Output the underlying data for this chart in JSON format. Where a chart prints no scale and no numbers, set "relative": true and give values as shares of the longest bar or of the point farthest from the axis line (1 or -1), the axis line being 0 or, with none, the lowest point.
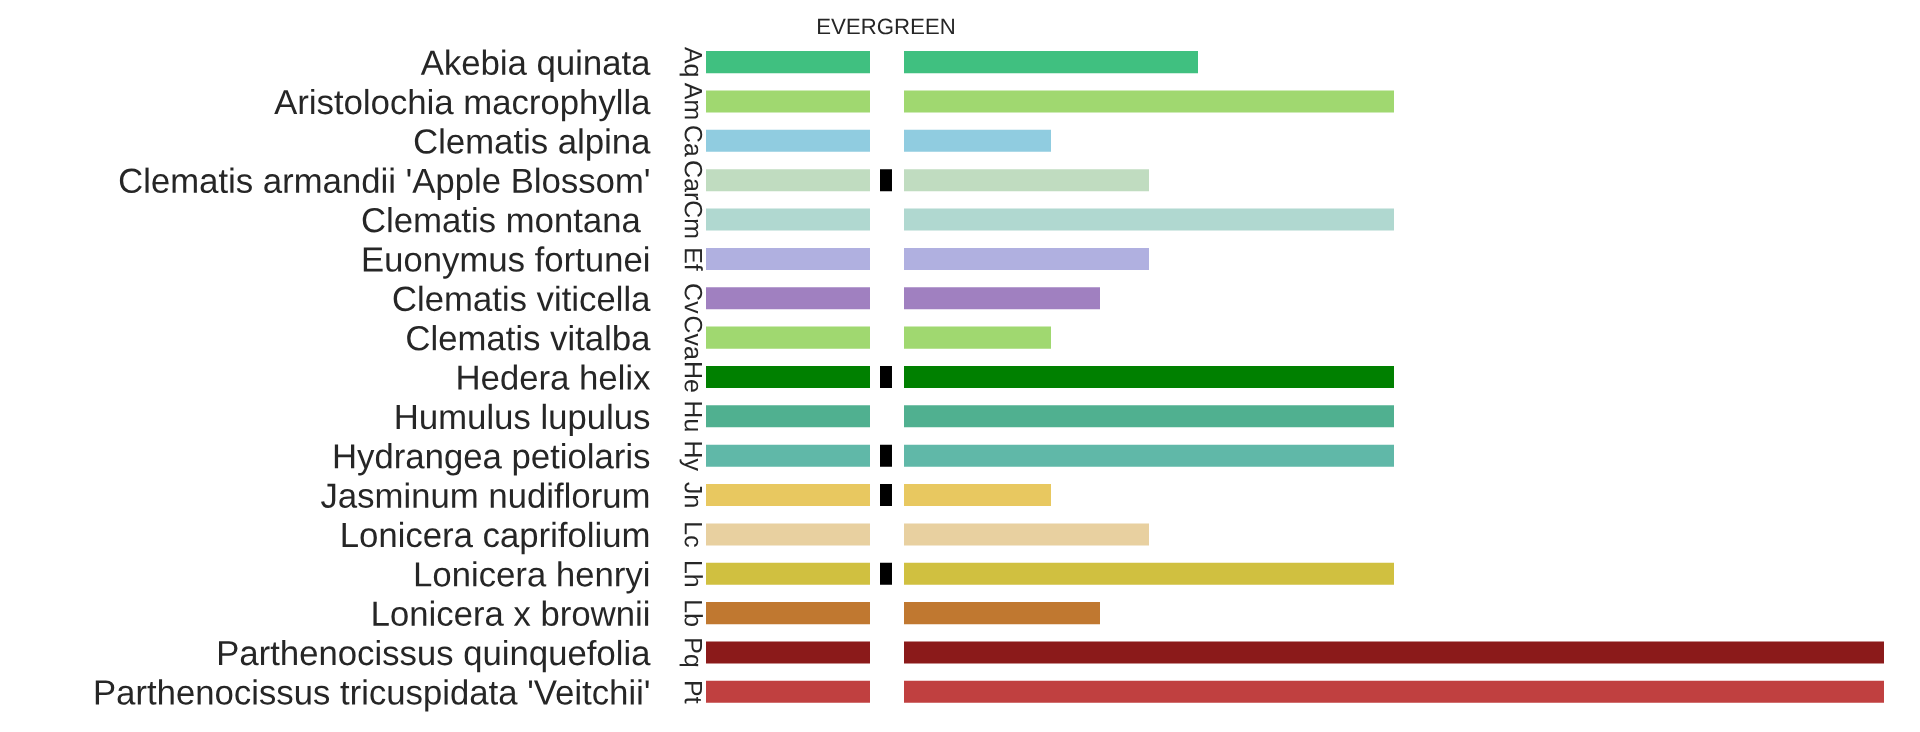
{
  "chart_data": [
    {
      "type": "bar",
      "orientation": "horizontal",
      "relative": true,
      "tick_labels": "y",
      "categories": [
        "Akebia quinata",
        "Aristolochia macrophylla",
        "Clematis alpina",
        "Clematis armandii 'Apple Blossom'",
        "Clematis montana ",
        "Euonymus fortunei",
        "Clematis viticella",
        "Clematis vitalba",
        "Hedera helix",
        "Humulus lupulus",
        "Hydrangea petiolaris",
        "Jasminum nudiflorum",
        "Lonicera caprifolium",
        "Lonicera henryi",
        "Lonicera x brownii",
        "Parthenocissus quinquefolia",
        "Parthenocissus tricuspidata 'Veitchii'"
      ],
      "y2_categories": [
        "Aq",
        "Am",
        "Ca",
        "Car",
        "Cm",
        "Ef",
        "Cv",
        "Cva",
        "He",
        "Hu",
        "Hy",
        "Jn",
        "Lc",
        "Lh",
        "Lb",
        "Pq",
        "Pt"
      ],
      "values": [
        1,
        1,
        1,
        1,
        1,
        1,
        1,
        1,
        1,
        1,
        1,
        1,
        1,
        1,
        1,
        1,
        1
      ],
      "colors": [
        "#40c080",
        "#a0d870",
        "#90cce0",
        "#c0dcc0",
        "#b0d8d0",
        "#b0b0e0",
        "#a080c0",
        "#a0d870",
        "#008000",
        "#50b090",
        "#60b8a8",
        "#e8c860",
        "#e8d0a0",
        "#d0c040",
        "#c07830",
        "#8b1a1a",
        "#c04040"
      ]
    },
    {
      "type": "bar",
      "orientation": "horizontal",
      "title": "EVERGREEN",
      "relative": true,
      "tick_labels": false,
      "categories": [
        null,
        null,
        null,
        null,
        null,
        null,
        null,
        null,
        null,
        null,
        null,
        null,
        null,
        null,
        null,
        null,
        null
      ],
      "color": "#000000",
      "values": [
        null,
        null,
        null,
        1,
        null,
        null,
        null,
        null,
        1,
        null,
        1,
        1,
        null,
        1,
        null,
        null,
        null
      ]
    },
    {
      "type": "bar",
      "orientation": "horizontal",
      "relative": true,
      "tick_labels": false,
      "categories": [
        null,
        null,
        null,
        null,
        null,
        null,
        null,
        null,
        null,
        null,
        null,
        null,
        null,
        null,
        null,
        null,
        null
      ],
      "values": [
        0.3,
        0.5,
        0.15,
        0.25,
        0.5,
        0.25,
        0.2,
        0.15,
        0.5,
        0.5,
        0.5,
        0.15,
        0.25,
        0.5,
        0.2,
        1,
        1
      ],
      "colors": [
        "#40c080",
        "#a0d870",
        "#90cce0",
        "#c0dcc0",
        "#b0d8d0",
        "#b0b0e0",
        "#a080c0",
        "#a0d870",
        "#008000",
        "#50b090",
        "#60b8a8",
        "#e8c860",
        "#e8d0a0",
        "#d0c040",
        "#c07830",
        "#8b1a1a",
        "#c04040"
      ]
    }
  ]
}
